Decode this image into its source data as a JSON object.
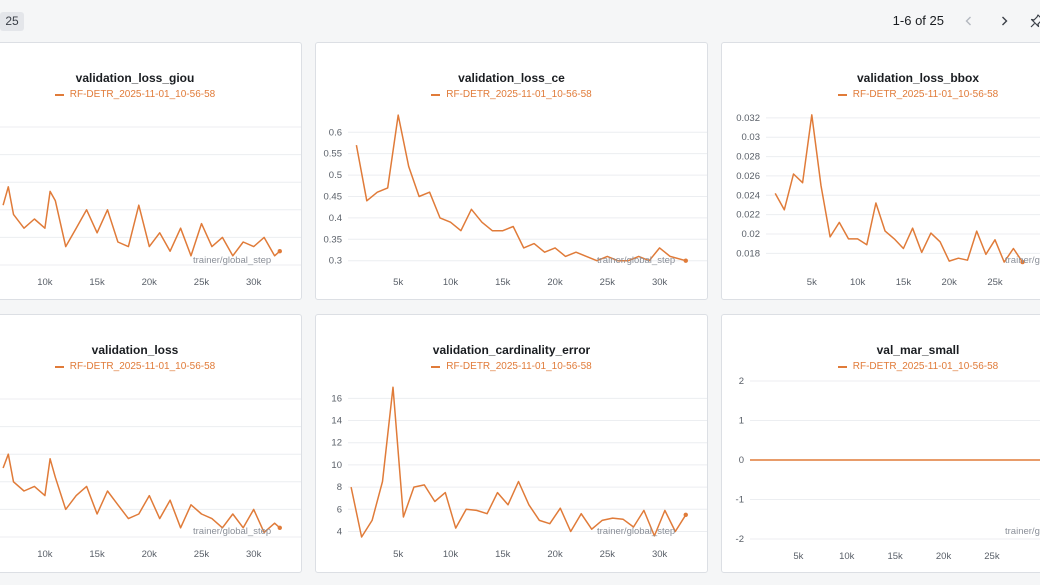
{
  "topbar": {
    "panel_count": "25",
    "pager_text": "1-6 of 25",
    "icons": {
      "prev": "chevron-left-icon",
      "next": "chevron-right-icon",
      "pin": "pin-icon"
    }
  },
  "colors": {
    "series": "#e07b39",
    "grid": "#eceef1",
    "axis_text": "#5a6069",
    "background": "#f5f6f7"
  },
  "chart_data": [
    {
      "type": "line",
      "title": "validation_loss_giou",
      "legend": "RF-DETR_2025-11-01_10-56-58",
      "xlabel": "trainer/global_step",
      "xticks": [
        "10k",
        "15k",
        "20k",
        "25k",
        "30k"
      ],
      "yticks": [],
      "xlim": [
        5800,
        33000
      ],
      "ylim": [
        0.9,
        1.2
      ],
      "grid": true,
      "series": [
        {
          "x": [
            6000,
            6500,
            7000,
            8000,
            9000,
            10000,
            10500,
            11000,
            12000,
            13000,
            14000,
            15000,
            16000,
            17000,
            18000,
            19000,
            20000,
            21000,
            22000,
            23000,
            24000,
            25000,
            26000,
            27000,
            28000,
            29000,
            30000,
            31000,
            32000,
            32500
          ],
          "y": [
            1.03,
            1.07,
            1.01,
            0.98,
            1.0,
            0.98,
            1.06,
            1.04,
            0.94,
            0.98,
            1.02,
            0.97,
            1.02,
            0.95,
            0.94,
            1.03,
            0.94,
            0.97,
            0.93,
            0.98,
            0.92,
            0.99,
            0.94,
            0.96,
            0.92,
            0.95,
            0.94,
            0.96,
            0.92,
            0.93
          ]
        }
      ]
    },
    {
      "type": "line",
      "title": "validation_loss_ce",
      "legend": "RF-DETR_2025-11-01_10-56-58",
      "xlabel": "trainer/global_step",
      "xticks": [
        "5k",
        "10k",
        "15k",
        "20k",
        "25k",
        "30k"
      ],
      "yticks": [
        "0.3",
        "0.35",
        "0.4",
        "0.45",
        "0.5",
        "0.55",
        "0.6"
      ],
      "xlim": [
        200,
        33000
      ],
      "ylim": [
        0.29,
        0.645
      ],
      "grid": true,
      "series": [
        {
          "x": [
            1000,
            2000,
            3000,
            4000,
            5000,
            6000,
            7000,
            8000,
            9000,
            10000,
            11000,
            12000,
            13000,
            14000,
            15000,
            16000,
            17000,
            18000,
            19000,
            20000,
            21000,
            22000,
            23000,
            24000,
            25000,
            26000,
            27000,
            28000,
            29000,
            30000,
            31000,
            32500
          ],
          "y": [
            0.57,
            0.44,
            0.46,
            0.47,
            0.64,
            0.52,
            0.45,
            0.46,
            0.4,
            0.39,
            0.37,
            0.42,
            0.39,
            0.37,
            0.37,
            0.38,
            0.33,
            0.34,
            0.32,
            0.33,
            0.31,
            0.32,
            0.31,
            0.3,
            0.31,
            0.3,
            0.3,
            0.31,
            0.3,
            0.33,
            0.31,
            0.3
          ]
        }
      ]
    },
    {
      "type": "line",
      "title": "validation_loss_bbox",
      "legend": "RF-DETR_2025-11-01_10-56-58",
      "xlabel": "trainer/global_step",
      "xticks": [
        "5k",
        "10k",
        "15k",
        "20k",
        "25k"
      ],
      "yticks": [
        "0.018",
        "0.02",
        "0.022",
        "0.024",
        "0.026",
        "0.028",
        "0.03",
        "0.032"
      ],
      "xlim": [
        0,
        31000
      ],
      "ylim": [
        0.0168,
        0.0325
      ],
      "grid": true,
      "series": [
        {
          "x": [
            1000,
            2000,
            3000,
            4000,
            5000,
            6000,
            7000,
            8000,
            9000,
            10000,
            11000,
            12000,
            13000,
            14000,
            15000,
            16000,
            17000,
            18000,
            19000,
            20000,
            21000,
            22000,
            23000,
            24000,
            25000,
            26000,
            27000,
            28000
          ],
          "y": [
            0.0242,
            0.0225,
            0.0262,
            0.0253,
            0.0323,
            0.025,
            0.0197,
            0.0212,
            0.0195,
            0.0195,
            0.0189,
            0.0232,
            0.0203,
            0.0195,
            0.0185,
            0.0206,
            0.0181,
            0.0201,
            0.0192,
            0.0172,
            0.0175,
            0.0173,
            0.0203,
            0.0179,
            0.0194,
            0.0171,
            0.0185,
            0.0171
          ]
        }
      ]
    },
    {
      "type": "line",
      "title": "validation_loss",
      "legend": "RF-DETR_2025-11-01_10-56-58",
      "xlabel": "trainer/global_step",
      "xticks": [
        "10k",
        "15k",
        "20k",
        "25k",
        "30k"
      ],
      "yticks": [],
      "xlim": [
        5800,
        33000
      ],
      "ylim": [
        0.9,
        1.2
      ],
      "grid": true,
      "series": [
        {
          "x": [
            6000,
            6500,
            7000,
            8000,
            9000,
            10000,
            10500,
            11000,
            12000,
            13000,
            14000,
            15000,
            16000,
            17000,
            18000,
            19000,
            20000,
            21000,
            22000,
            23000,
            24000,
            25000,
            26000,
            27000,
            28000,
            29000,
            30000,
            31000,
            32000,
            32500
          ],
          "y": [
            1.05,
            1.08,
            1.02,
            1.0,
            1.01,
            0.99,
            1.07,
            1.03,
            0.96,
            0.99,
            1.01,
            0.95,
            1.0,
            0.97,
            0.94,
            0.95,
            0.99,
            0.94,
            0.98,
            0.92,
            0.97,
            0.95,
            0.94,
            0.92,
            0.95,
            0.92,
            0.96,
            0.91,
            0.93,
            0.92
          ]
        }
      ]
    },
    {
      "type": "line",
      "title": "validation_cardinality_error",
      "legend": "RF-DETR_2025-11-01_10-56-58",
      "xlabel": "trainer/global_step",
      "xticks": [
        "5k",
        "10k",
        "15k",
        "20k",
        "25k",
        "30k"
      ],
      "yticks": [
        "4",
        "6",
        "8",
        "10",
        "12",
        "14",
        "16"
      ],
      "xlim": [
        200,
        33000
      ],
      "ylim": [
        3.5,
        17.2
      ],
      "grid": true,
      "series": [
        {
          "x": [
            500,
            1500,
            2500,
            3500,
            4500,
            5500,
            6500,
            7500,
            8500,
            9500,
            10500,
            11500,
            12500,
            13500,
            14500,
            15500,
            16500,
            17500,
            18500,
            19500,
            20500,
            21500,
            22500,
            23500,
            24500,
            25500,
            26500,
            27500,
            28500,
            29500,
            30500,
            31500,
            32500
          ],
          "y": [
            8.0,
            3.5,
            5.0,
            8.5,
            17.0,
            5.3,
            8.0,
            8.2,
            6.7,
            7.5,
            4.3,
            6.0,
            5.9,
            5.6,
            7.5,
            6.4,
            8.5,
            6.4,
            5.0,
            4.7,
            6.1,
            4.0,
            5.6,
            4.2,
            5.0,
            5.2,
            5.1,
            4.4,
            5.9,
            3.6,
            5.9,
            4.0,
            5.5
          ]
        }
      ]
    },
    {
      "type": "line",
      "title": "val_mar_small",
      "legend": "RF-DETR_2025-11-01_10-56-58",
      "xlabel": "trainer/global_step",
      "xticks": [
        "5k",
        "10k",
        "15k",
        "20k",
        "25k"
      ],
      "yticks": [
        "-2",
        "-1",
        "0",
        "1",
        "2"
      ],
      "xlim": [
        0,
        31000
      ],
      "ylim": [
        -2,
        2
      ],
      "grid": true,
      "series": [
        {
          "x": [
            0,
            31000
          ],
          "y": [
            0,
            0
          ]
        }
      ]
    }
  ]
}
